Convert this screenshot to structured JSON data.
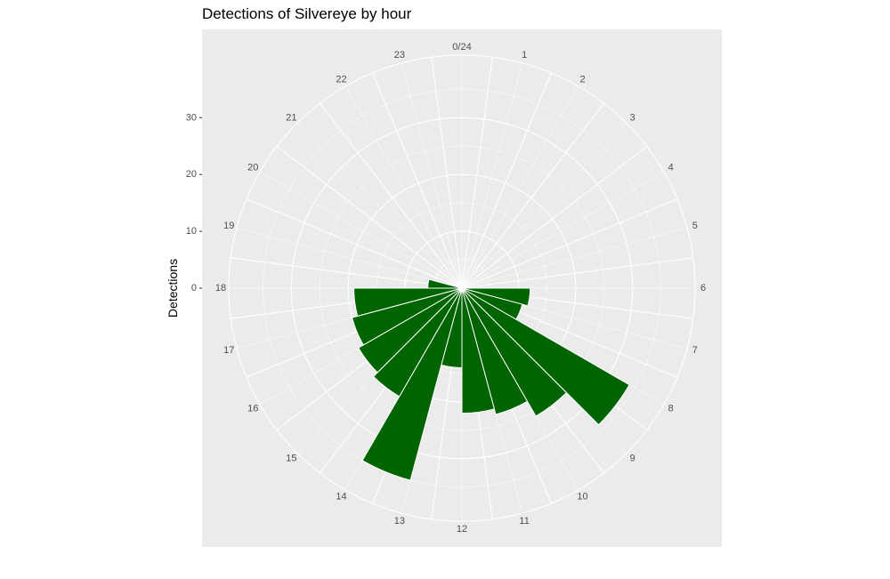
{
  "chart_data": {
    "type": "bar",
    "coord": "polar",
    "title": "Detections of Silvereye by hour",
    "xlabel": "",
    "ylabel": "Detections",
    "categories": [
      "0/24",
      "1",
      "2",
      "3",
      "4",
      "5",
      "6",
      "7",
      "8",
      "9",
      "10",
      "11",
      "12",
      "13",
      "14",
      "15",
      "16",
      "17",
      "18",
      "19",
      "20",
      "21",
      "22",
      "23"
    ],
    "values": [
      0,
      0,
      0,
      0,
      0,
      0,
      12,
      11,
      34,
      26,
      23,
      22,
      14,
      35,
      22,
      21,
      20,
      19,
      6,
      0,
      0,
      0,
      0,
      0
    ],
    "y_ticks": [
      "0",
      "10",
      "20",
      "30"
    ],
    "ylim": [
      0,
      41
    ],
    "grid": true,
    "colors": {
      "bar": "#006400",
      "panel": "#ebebeb",
      "grid": "#ffffff"
    }
  }
}
